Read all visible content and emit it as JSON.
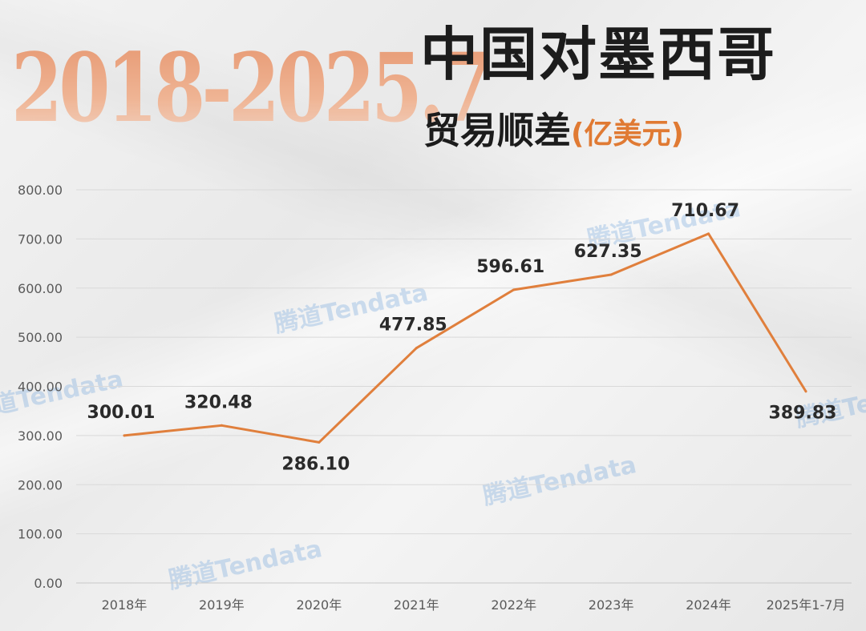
{
  "header": {
    "years_range": "2018-2025.7",
    "title_line1": "中国对墨西哥",
    "title_line2": "贸易顺差",
    "unit": "(亿美元)"
  },
  "watermark_text": "腾道Tendata",
  "chart_data": {
    "type": "line",
    "categories": [
      "2018年",
      "2019年",
      "2020年",
      "2021年",
      "2022年",
      "2023年",
      "2024年",
      "2025年1-7月"
    ],
    "values": [
      300.01,
      320.48,
      286.1,
      477.85,
      596.61,
      627.35,
      710.67,
      389.83
    ],
    "data_labels": [
      "300.01",
      "320.48",
      "286.10",
      "477.85",
      "596.61",
      "627.35",
      "710.67",
      "389.83"
    ],
    "y_ticks": [
      "0.00",
      "100.00",
      "200.00",
      "300.00",
      "400.00",
      "500.00",
      "600.00",
      "700.00",
      "800.00"
    ],
    "ylim": [
      0,
      800
    ],
    "grid": true,
    "line_color": "#e07f3c",
    "label_color": "#2a2a2a",
    "axis_text_color": "#5a5a5a"
  }
}
